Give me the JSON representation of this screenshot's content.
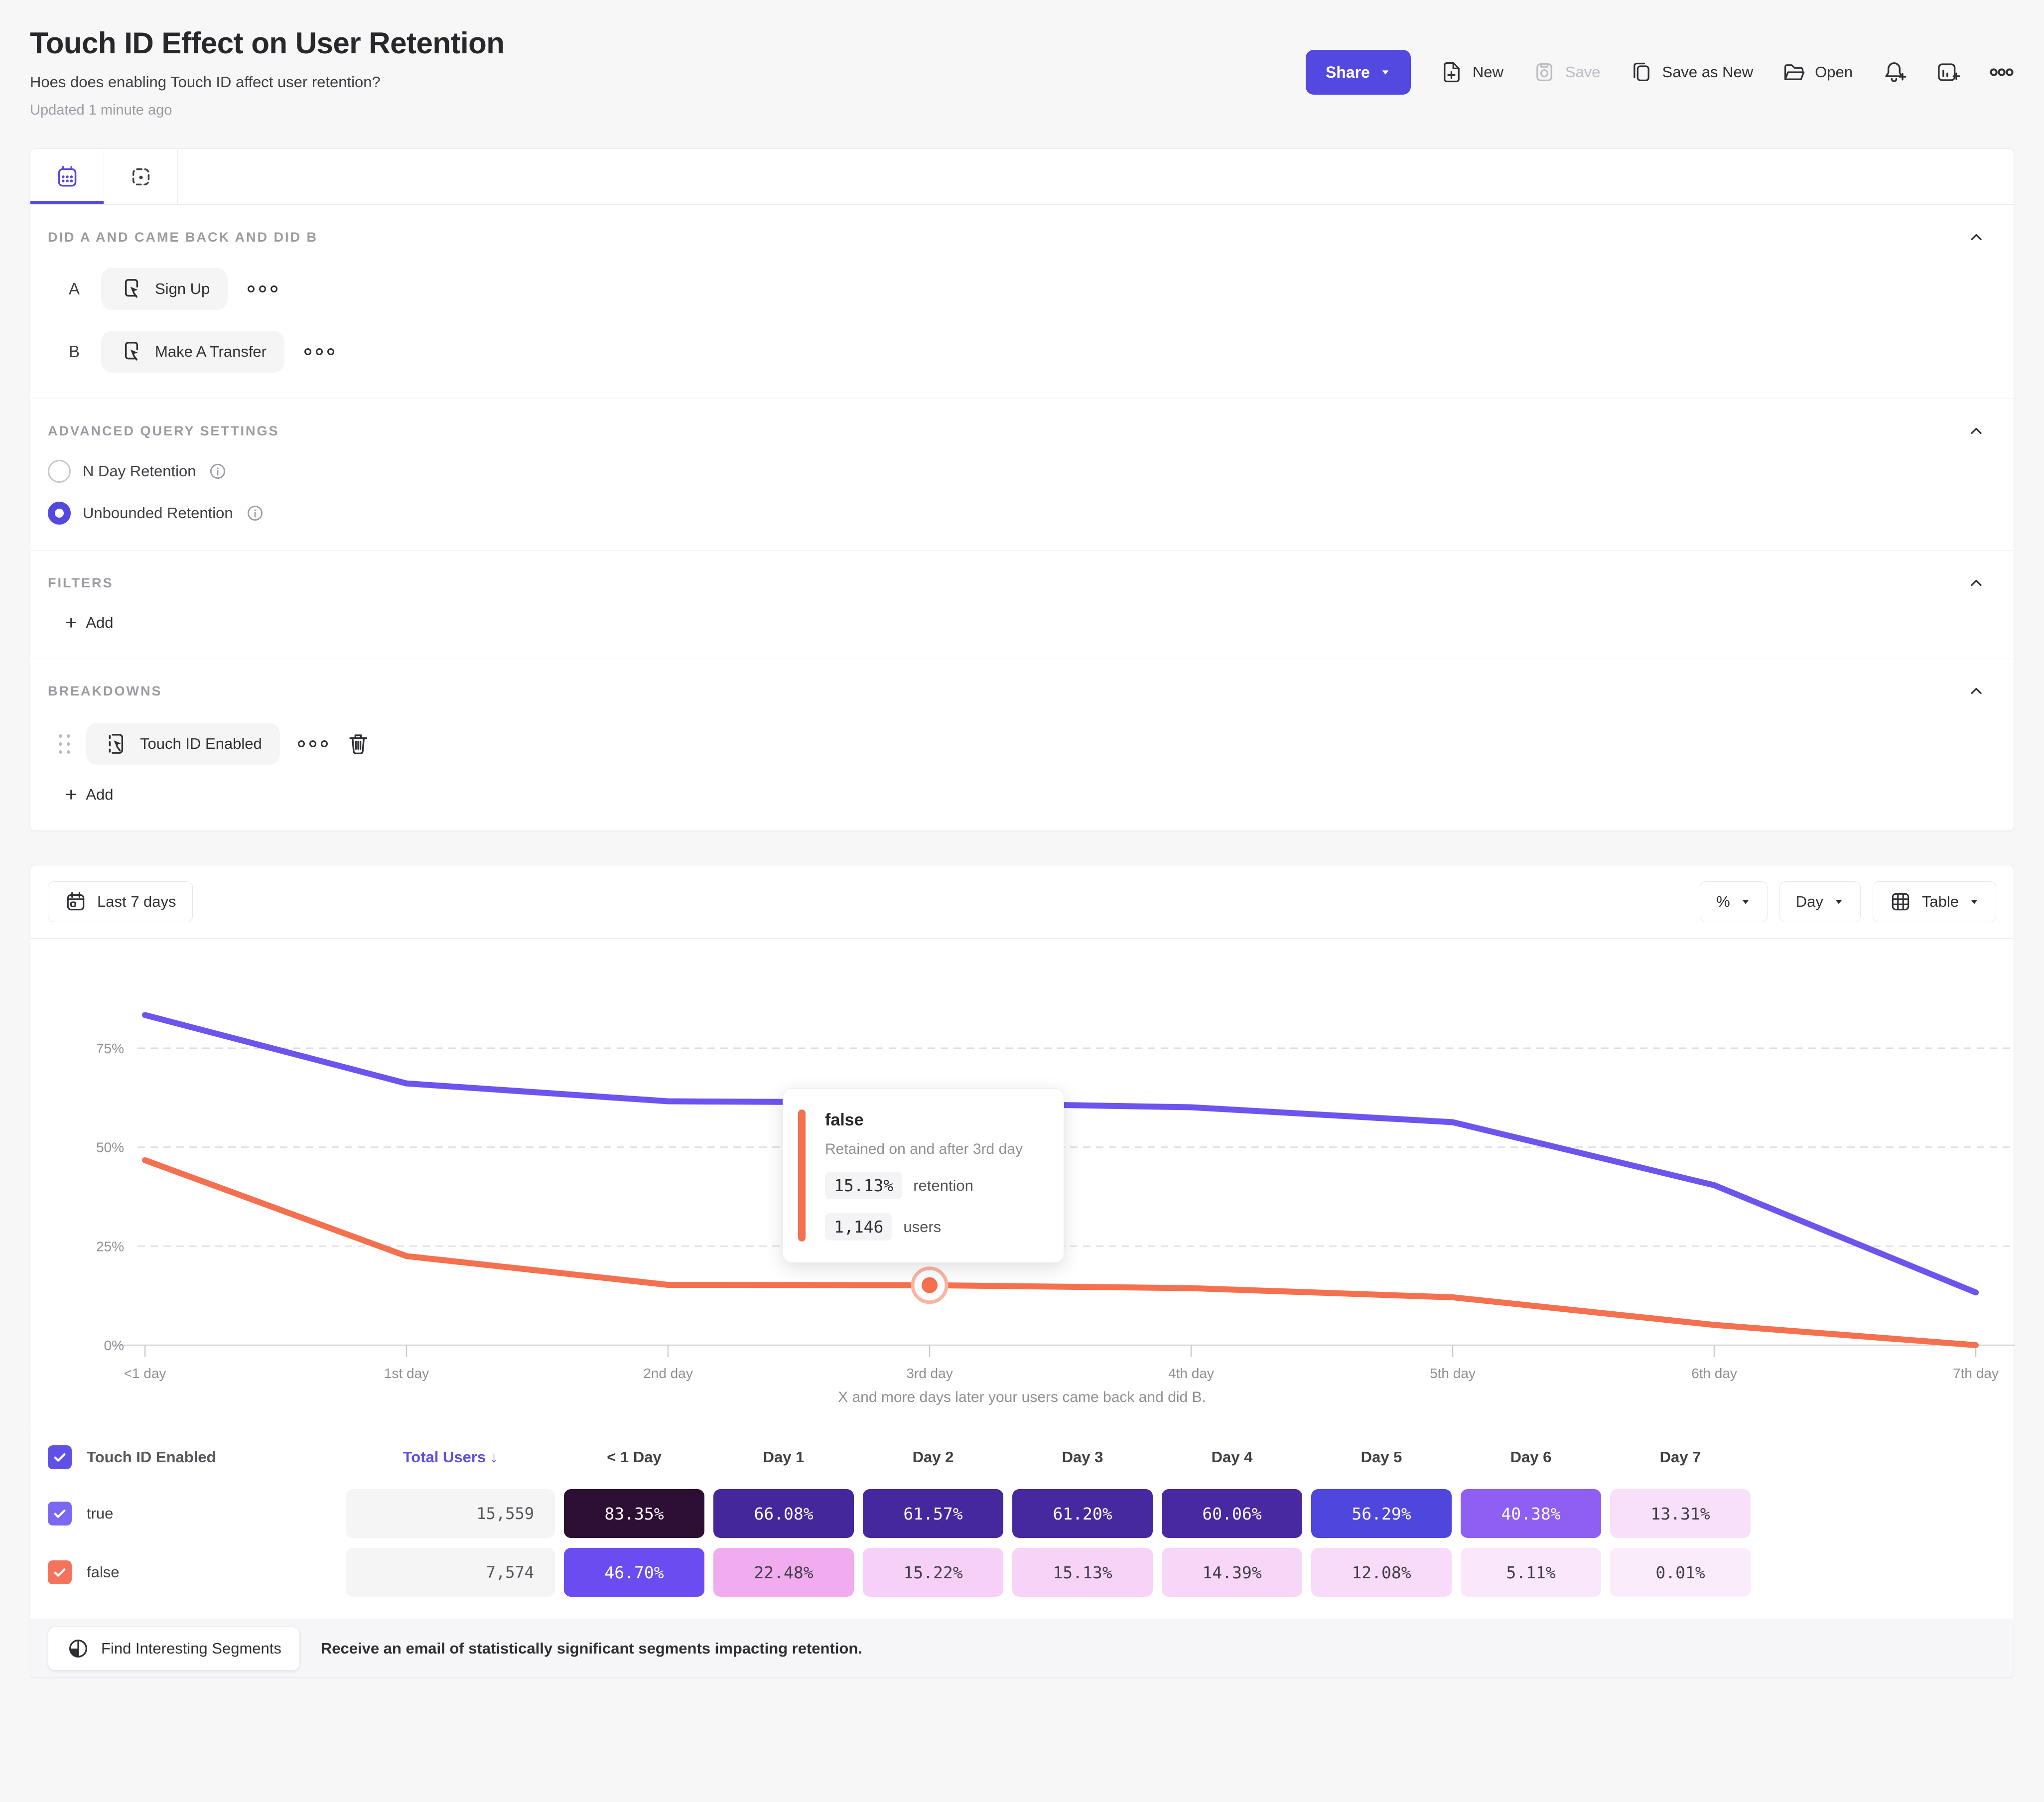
{
  "header": {
    "title": "Touch ID Effect on User Retention",
    "subtitle": "Hoes does enabling Touch ID affect user retention?",
    "updated": "Updated 1 minute ago"
  },
  "toolbar": {
    "share_label": "Share",
    "new_label": "New",
    "save_label": "Save",
    "save_as_new_label": "Save as New",
    "open_label": "Open"
  },
  "query": {
    "section_title": "DID A AND CAME BACK AND DID B",
    "row_a_key": "A",
    "row_a_event": "Sign Up",
    "row_b_key": "B",
    "row_b_event": "Make A Transfer",
    "aqs_title": "ADVANCED QUERY SETTINGS",
    "radio_nday_label": "N Day Retention",
    "radio_unbounded_label": "Unbounded Retention",
    "filters_title": "FILTERS",
    "filters_add_label": "Add",
    "breakdowns_title": "BREAKDOWNS",
    "breakdown_chip_label": "Touch ID Enabled",
    "breakdowns_add_label": "Add"
  },
  "controls": {
    "date_range": "Last 7 days",
    "unit": "%",
    "granularity": "Day",
    "view": "Table"
  },
  "chart_data": {
    "type": "line",
    "x_categories": [
      "<1 day",
      "1st day",
      "2nd day",
      "3rd day",
      "4th day",
      "5th day",
      "6th day",
      "7th day"
    ],
    "y_ticks": [
      "0%",
      "25%",
      "50%",
      "75%"
    ],
    "ylim": [
      0,
      100
    ],
    "grid": "dashed-horizontal",
    "legend": "none",
    "xlabel": "X and more days later your users came back and did B.",
    "series": [
      {
        "name": "true",
        "color": "#6c55ee",
        "values": [
          83.35,
          66.08,
          61.57,
          61.2,
          60.06,
          56.29,
          40.38,
          13.31
        ]
      },
      {
        "name": "false",
        "color": "#f4704e",
        "values": [
          46.7,
          22.48,
          15.22,
          15.13,
          14.39,
          12.08,
          5.11,
          0.01
        ]
      }
    ],
    "hover": {
      "series": "false",
      "x": "3rd day",
      "value": 15.13
    }
  },
  "tooltip": {
    "series": "false",
    "series_color": "#f4704e",
    "subtitle": "Retained on and after 3rd day",
    "retention_value": "15.13%",
    "retention_label": "retention",
    "users_value": "1,146",
    "users_label": "users"
  },
  "table": {
    "breakdown_label": "Touch ID Enabled",
    "header_checkbox_color": "#5f50e8",
    "total_users_label": "Total Users",
    "sort_indicator": "↓",
    "day_headers": [
      "< 1 Day",
      "Day 1",
      "Day 2",
      "Day 3",
      "Day 4",
      "Day 5",
      "Day 6",
      "Day 7"
    ],
    "rows": [
      {
        "label": "true",
        "checkbox_color": "#7b68f2",
        "total": "15,559",
        "cells": [
          {
            "v": "83.35%",
            "bg": "#2d0f34",
            "fg": "#ffffff"
          },
          {
            "v": "66.08%",
            "bg": "#44289b",
            "fg": "#ffffff"
          },
          {
            "v": "61.57%",
            "bg": "#46289e",
            "fg": "#ffffff"
          },
          {
            "v": "61.20%",
            "bg": "#47299f",
            "fg": "#ffffff"
          },
          {
            "v": "60.06%",
            "bg": "#4829a2",
            "fg": "#ffffff"
          },
          {
            "v": "56.29%",
            "bg": "#4f46dd",
            "fg": "#ffffff"
          },
          {
            "v": "40.38%",
            "bg": "#8e5ff2",
            "fg": "#ffffff"
          },
          {
            "v": "13.31%",
            "bg": "#f9e0fa",
            "fg": "#3f3f46"
          }
        ]
      },
      {
        "label": "false",
        "checkbox_color": "#f4735a",
        "total": "7,574",
        "cells": [
          {
            "v": "46.70%",
            "bg": "#6a4cf0",
            "fg": "#ffffff"
          },
          {
            "v": "22.48%",
            "bg": "#f1abef",
            "fg": "#3f3f46"
          },
          {
            "v": "15.22%",
            "bg": "#f6d0f6",
            "fg": "#3f3f46"
          },
          {
            "v": "15.13%",
            "bg": "#f7d3f7",
            "fg": "#3f3f46"
          },
          {
            "v": "14.39%",
            "bg": "#f7d6f8",
            "fg": "#3f3f46"
          },
          {
            "v": "12.08%",
            "bg": "#f8dbf9",
            "fg": "#3f3f46"
          },
          {
            "v": "5.11%",
            "bg": "#fae7fb",
            "fg": "#3f3f46"
          },
          {
            "v": "0.01%",
            "bg": "#fbecfc",
            "fg": "#3f3f46"
          }
        ]
      }
    ]
  },
  "footer": {
    "button_label": "Find Interesting Segments",
    "message": "Receive an email of statistically significant segments impacting retention."
  },
  "colors": {
    "accent": "#5348e0",
    "line_true": "#6c55ee",
    "line_false": "#f4704e",
    "page_bg": "#f7f7f8"
  }
}
